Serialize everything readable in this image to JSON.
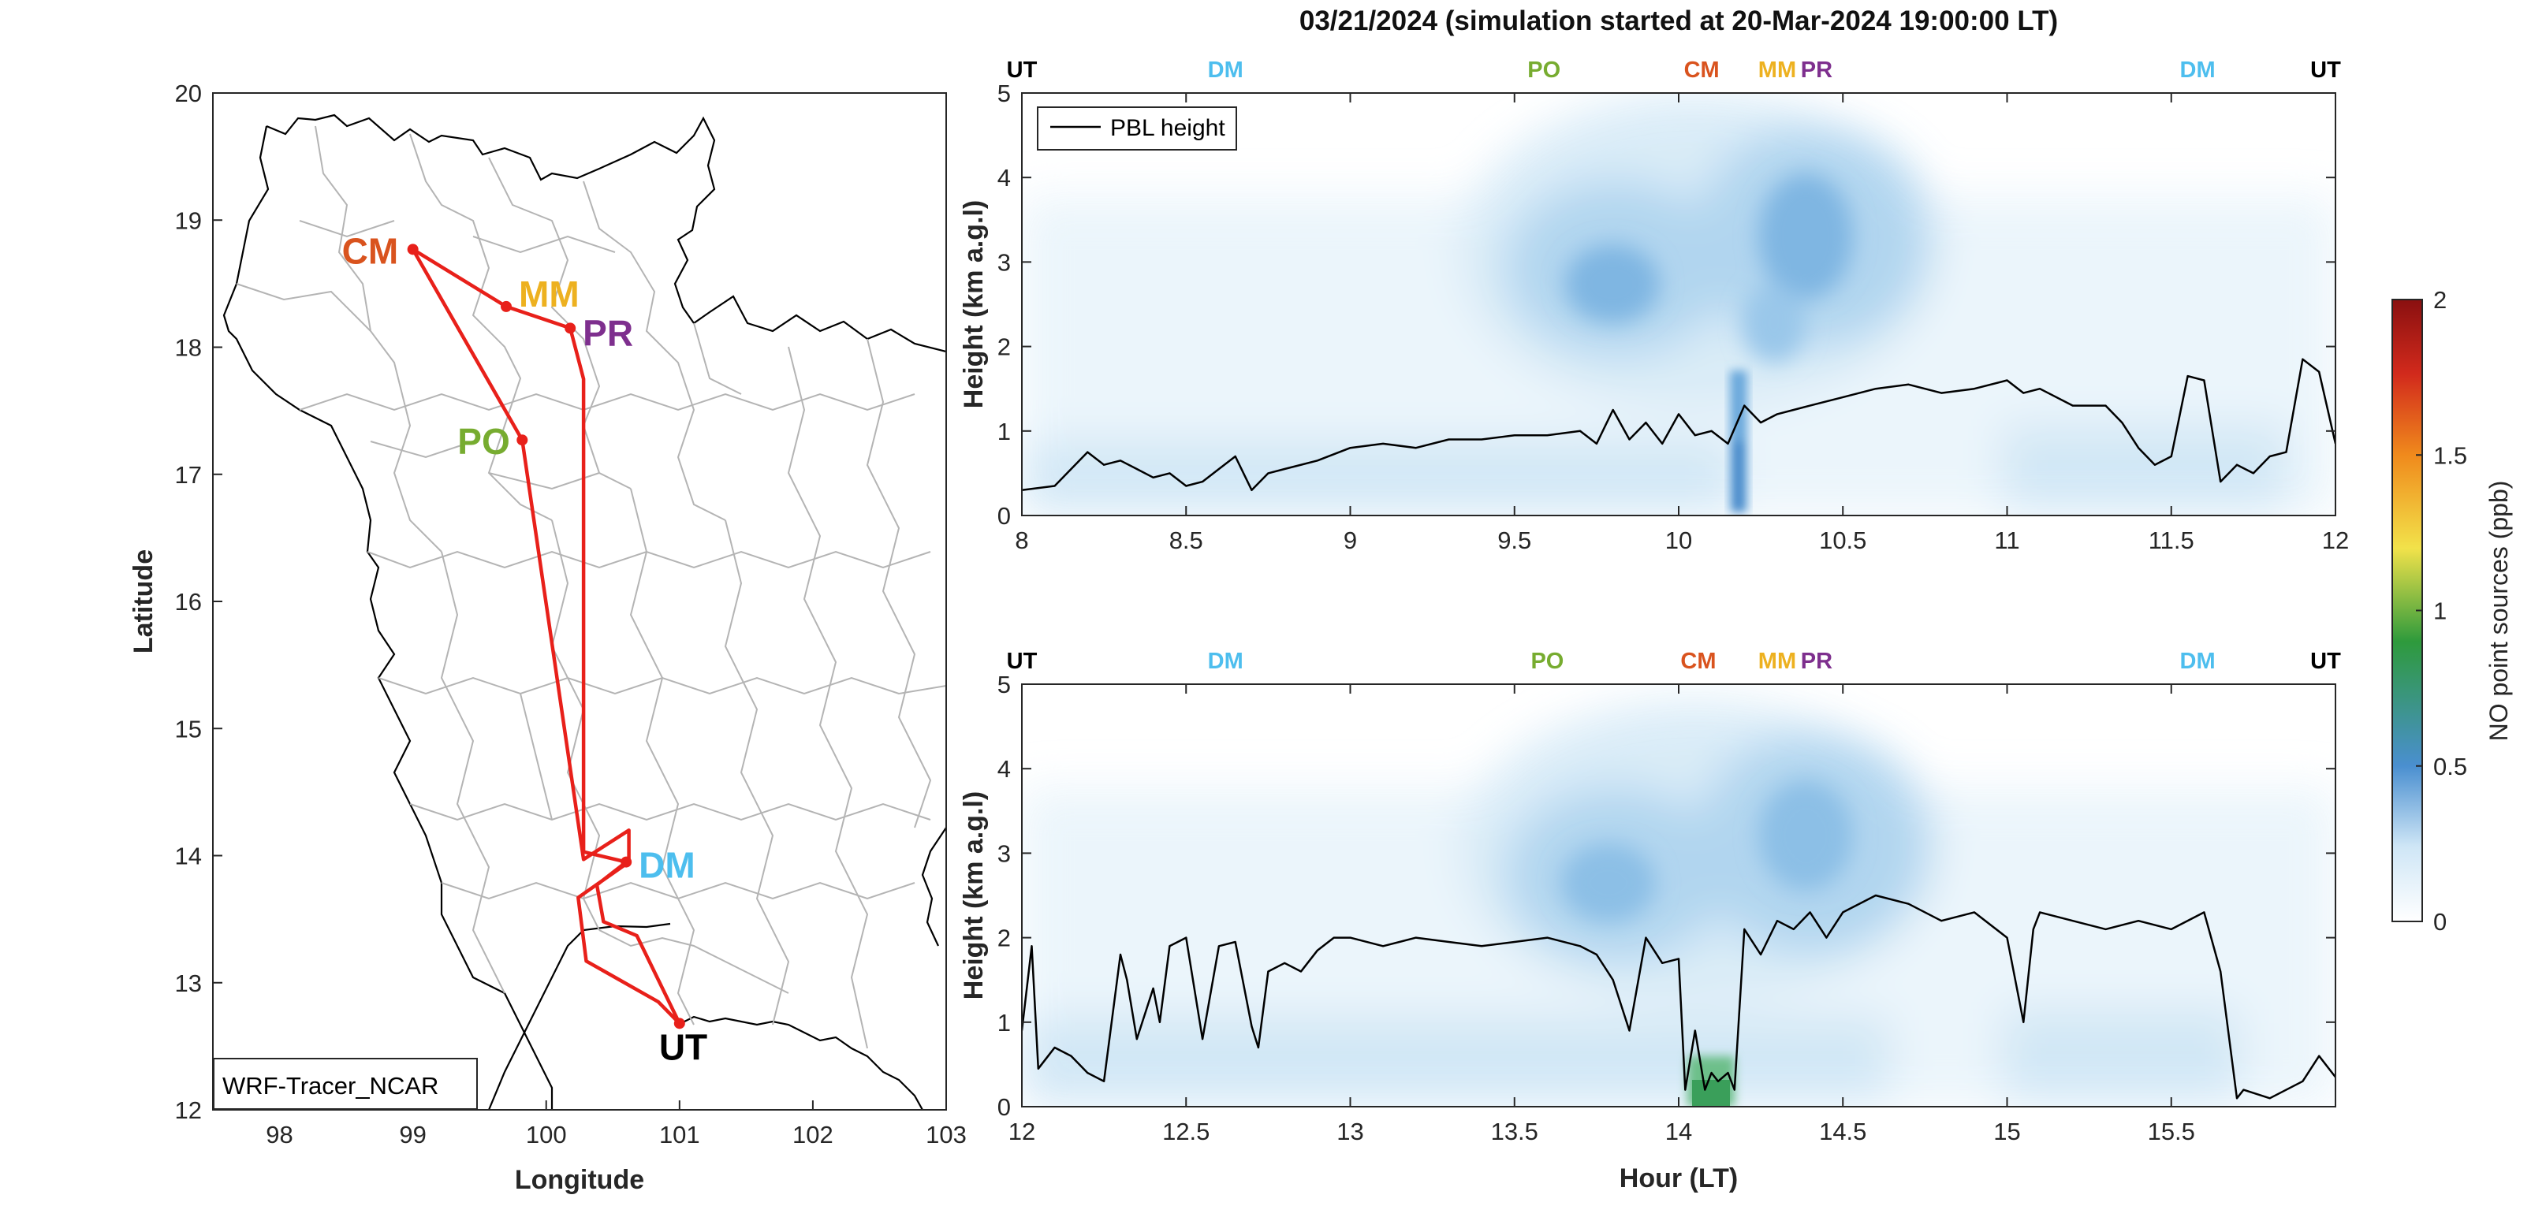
{
  "figure": {
    "title": "03/21/2024 (simulation started at 20-Mar-2024 19:00:00 LT)",
    "x_axis_label": "Hour (LT)",
    "y_axis_label": "Height (km a.g.l)",
    "legend_pbl": "PBL height",
    "colorbar_label": "NO point sources (ppb)",
    "colorbar_ticks": [
      "0",
      "0.5",
      "1",
      "1.5",
      "2"
    ],
    "colormap": [
      "#ffffff",
      "#cfe6f6",
      "#4a8fd0",
      "#2e9a3c",
      "#f2e24a",
      "#f08a1c",
      "#d22a1c",
      "#8a1010"
    ]
  },
  "map": {
    "xlabel": "Longitude",
    "ylabel": "Latitude",
    "xticks": [
      "98",
      "99",
      "100",
      "101",
      "102",
      "103"
    ],
    "yticks": [
      "12",
      "13",
      "14",
      "15",
      "16",
      "17",
      "18",
      "19",
      "20"
    ],
    "model_label": "WRF-Tracer_NCAR",
    "route_color": "#e8201a",
    "route": [
      [
        99.0,
        18.77
      ],
      [
        99.82,
        17.27
      ],
      [
        100.28,
        13.97
      ],
      [
        100.62,
        14.2
      ],
      [
        100.62,
        13.95
      ],
      [
        100.24,
        13.67
      ],
      [
        100.3,
        13.17
      ],
      [
        100.84,
        12.85
      ],
      [
        101.0,
        12.68
      ],
      [
        100.68,
        13.37
      ],
      [
        100.43,
        13.48
      ],
      [
        100.38,
        13.77
      ],
      [
        100.6,
        13.95
      ],
      [
        100.28,
        14.03
      ],
      [
        100.28,
        17.75
      ],
      [
        100.18,
        18.15
      ],
      [
        99.7,
        18.32
      ],
      [
        99.0,
        18.77
      ]
    ],
    "stops": [
      {
        "code": "CM",
        "lon": 99.0,
        "lat": 18.77,
        "color": "#d9531e"
      },
      {
        "code": "MM",
        "lon": 99.7,
        "lat": 18.32,
        "color": "#edb120"
      },
      {
        "code": "PR",
        "lon": 100.18,
        "lat": 18.15,
        "color": "#7e2f8e"
      },
      {
        "code": "PO",
        "lon": 99.82,
        "lat": 17.27,
        "color": "#77ac30"
      },
      {
        "code": "DM",
        "lon": 100.6,
        "lat": 13.95,
        "color": "#4dbeee"
      },
      {
        "code": "UT",
        "lon": 101.0,
        "lat": 12.68,
        "color": "#000000"
      }
    ]
  },
  "chart_data": [
    {
      "type": "heatmap",
      "panel": "top",
      "xlim": [
        8,
        12
      ],
      "ylim": [
        0,
        5
      ],
      "xticks": [
        "8",
        "8.5",
        "9",
        "9.5",
        "10",
        "10.5",
        "11",
        "11.5",
        "12"
      ],
      "yticks": [
        "0",
        "1",
        "2",
        "3",
        "4",
        "5"
      ],
      "station_labels": [
        {
          "code": "UT",
          "x": 8.0,
          "color": "#000000"
        },
        {
          "code": "DM",
          "x": 8.62,
          "color": "#4dbeee"
        },
        {
          "code": "PO",
          "x": 9.59,
          "color": "#77ac30"
        },
        {
          "code": "CM",
          "x": 10.07,
          "color": "#d9531e"
        },
        {
          "code": "MM",
          "x": 10.3,
          "color": "#edb120"
        },
        {
          "code": "PR",
          "x": 10.42,
          "color": "#7e2f8e"
        },
        {
          "code": "DM",
          "x": 11.58,
          "color": "#4dbeee"
        },
        {
          "code": "UT",
          "x": 11.97,
          "color": "#000000"
        }
      ],
      "series": [
        {
          "name": "PBL height",
          "x": [
            8.0,
            8.1,
            8.15,
            8.2,
            8.25,
            8.3,
            8.35,
            8.4,
            8.45,
            8.5,
            8.55,
            8.6,
            8.65,
            8.7,
            8.75,
            8.8,
            8.9,
            9.0,
            9.1,
            9.2,
            9.3,
            9.4,
            9.5,
            9.6,
            9.7,
            9.75,
            9.8,
            9.85,
            9.9,
            9.95,
            10.0,
            10.05,
            10.1,
            10.15,
            10.2,
            10.25,
            10.3,
            10.35,
            10.4,
            10.5,
            10.6,
            10.7,
            10.8,
            10.9,
            11.0,
            11.05,
            11.1,
            11.2,
            11.3,
            11.35,
            11.4,
            11.45,
            11.5,
            11.55,
            11.6,
            11.65,
            11.7,
            11.75,
            11.8,
            11.85,
            11.9,
            11.95,
            12.0
          ],
          "values": [
            0.3,
            0.35,
            0.55,
            0.75,
            0.6,
            0.65,
            0.55,
            0.45,
            0.5,
            0.35,
            0.4,
            0.55,
            0.7,
            0.3,
            0.5,
            0.55,
            0.65,
            0.8,
            0.85,
            0.8,
            0.9,
            0.9,
            0.95,
            0.95,
            1.0,
            0.85,
            1.25,
            0.9,
            1.1,
            0.85,
            1.2,
            0.95,
            1.0,
            0.85,
            1.3,
            1.1,
            1.2,
            1.25,
            1.3,
            1.4,
            1.5,
            1.55,
            1.45,
            1.5,
            1.6,
            1.45,
            1.5,
            1.3,
            1.3,
            1.1,
            0.8,
            0.6,
            0.7,
            1.65,
            1.6,
            0.4,
            0.6,
            0.5,
            0.7,
            0.75,
            1.85,
            1.7,
            0.85
          ]
        }
      ]
    },
    {
      "type": "heatmap",
      "panel": "bottom",
      "xlim": [
        12,
        16
      ],
      "ylim": [
        0,
        5
      ],
      "xticks": [
        "12",
        "12.5",
        "13",
        "13.5",
        "14",
        "14.5",
        "15",
        "15.5"
      ],
      "yticks": [
        "0",
        "1",
        "2",
        "3",
        "4",
        "5"
      ],
      "station_labels": [
        {
          "code": "UT",
          "x": 12.0,
          "color": "#000000"
        },
        {
          "code": "DM",
          "x": 12.62,
          "color": "#4dbeee"
        },
        {
          "code": "PO",
          "x": 13.6,
          "color": "#77ac30"
        },
        {
          "code": "CM",
          "x": 14.06,
          "color": "#d9531e"
        },
        {
          "code": "MM",
          "x": 14.3,
          "color": "#edb120"
        },
        {
          "code": "PR",
          "x": 14.42,
          "color": "#7e2f8e"
        },
        {
          "code": "DM",
          "x": 15.58,
          "color": "#4dbeee"
        },
        {
          "code": "UT",
          "x": 15.97,
          "color": "#000000"
        }
      ],
      "series": [
        {
          "name": "PBL height",
          "x": [
            12.0,
            12.03,
            12.05,
            12.08,
            12.1,
            12.15,
            12.2,
            12.25,
            12.3,
            12.32,
            12.35,
            12.4,
            12.42,
            12.45,
            12.5,
            12.55,
            12.6,
            12.65,
            12.7,
            12.72,
            12.75,
            12.8,
            12.85,
            12.9,
            12.95,
            13.0,
            13.1,
            13.2,
            13.3,
            13.4,
            13.5,
            13.6,
            13.7,
            13.75,
            13.8,
            13.85,
            13.9,
            13.95,
            14.0,
            14.02,
            14.05,
            14.08,
            14.1,
            14.12,
            14.15,
            14.17,
            14.2,
            14.25,
            14.3,
            14.35,
            14.4,
            14.45,
            14.5,
            14.6,
            14.7,
            14.8,
            14.9,
            15.0,
            15.05,
            15.08,
            15.1,
            15.2,
            15.3,
            15.4,
            15.5,
            15.6,
            15.65,
            15.7,
            15.72,
            15.8,
            15.9,
            15.95,
            16.0
          ],
          "values": [
            0.9,
            1.9,
            0.45,
            0.6,
            0.7,
            0.6,
            0.4,
            0.3,
            1.8,
            1.5,
            0.8,
            1.4,
            1.0,
            1.9,
            2.0,
            0.8,
            1.9,
            1.95,
            0.95,
            0.7,
            1.6,
            1.7,
            1.6,
            1.85,
            2.0,
            2.0,
            1.9,
            2.0,
            1.95,
            1.9,
            1.95,
            2.0,
            1.9,
            1.8,
            1.5,
            0.9,
            2.0,
            1.7,
            1.75,
            0.2,
            0.9,
            0.2,
            0.4,
            0.3,
            0.4,
            0.2,
            2.1,
            1.8,
            2.2,
            2.1,
            2.3,
            2.0,
            2.3,
            2.5,
            2.4,
            2.2,
            2.3,
            2.0,
            1.0,
            2.1,
            2.3,
            2.2,
            2.1,
            2.2,
            2.1,
            2.3,
            1.6,
            0.1,
            0.2,
            0.1,
            0.3,
            0.6,
            0.35
          ]
        }
      ]
    }
  ]
}
